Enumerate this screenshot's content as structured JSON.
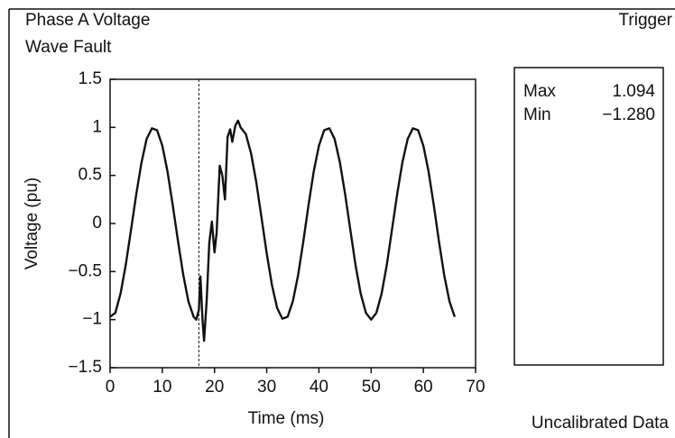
{
  "chart_data": {
    "type": "line",
    "title": "Phase A Voltage",
    "subtitle": "Wave Fault",
    "corner_label": "Trigger",
    "footer_label": "Uncalibrated Data",
    "xlabel": "Time (ms)",
    "ylabel": "Voltage (pu)",
    "xlim": [
      0,
      70
    ],
    "ylim": [
      -1.5,
      1.5
    ],
    "xticks": [
      0,
      10,
      20,
      30,
      40,
      50,
      60,
      70
    ],
    "yticks": [
      {
        "value": -1.5,
        "label": "−1.5"
      },
      {
        "value": -1,
        "label": "−1"
      },
      {
        "value": -0.5,
        "label": "−0.5"
      },
      0,
      0.5,
      1,
      1.5
    ],
    "marker_x": 17,
    "stats": [
      {
        "label": "Max",
        "value": "1.094"
      },
      {
        "label": "Min",
        "value": "−1.280"
      }
    ],
    "x": [
      0,
      1,
      2,
      3,
      4,
      5,
      6,
      7,
      8,
      9,
      10,
      11,
      12,
      13,
      14,
      15,
      16,
      16.5,
      17,
      17.3,
      17.7,
      18,
      18.5,
      19,
      19.5,
      20,
      20.4,
      21,
      21.5,
      22,
      22.5,
      23,
      23.4,
      24,
      24.5,
      25,
      26,
      27,
      28,
      29,
      30,
      31,
      32,
      33,
      34,
      35,
      36,
      37,
      38,
      39,
      40,
      41,
      42,
      43,
      44,
      45,
      46,
      47,
      48,
      49,
      50,
      51,
      52,
      53,
      54,
      55,
      56,
      57,
      58,
      59,
      60,
      61,
      62,
      63,
      64,
      65,
      66
    ],
    "series": [
      {
        "color": "#111111",
        "values": [
          -0.97,
          -0.93,
          -0.73,
          -0.43,
          -0.07,
          0.3,
          0.63,
          0.88,
          0.99,
          0.97,
          0.81,
          0.54,
          0.19,
          -0.18,
          -0.53,
          -0.81,
          -0.97,
          -1.0,
          -0.9,
          -0.55,
          -1.0,
          -1.22,
          -0.8,
          -0.2,
          0.02,
          -0.3,
          -0.1,
          0.6,
          0.5,
          0.25,
          0.9,
          0.98,
          0.85,
          1.02,
          1.07,
          1.0,
          0.93,
          0.73,
          0.43,
          0.06,
          -0.31,
          -0.64,
          -0.88,
          -0.99,
          -0.97,
          -0.81,
          -0.54,
          -0.19,
          0.19,
          0.54,
          0.81,
          0.97,
          0.99,
          0.88,
          0.64,
          0.31,
          -0.06,
          -0.43,
          -0.73,
          -0.93,
          -1.0,
          -0.93,
          -0.73,
          -0.43,
          -0.06,
          0.31,
          0.64,
          0.88,
          0.99,
          0.97,
          0.81,
          0.54,
          0.19,
          -0.19,
          -0.54,
          -0.81,
          -0.97
        ]
      }
    ]
  }
}
